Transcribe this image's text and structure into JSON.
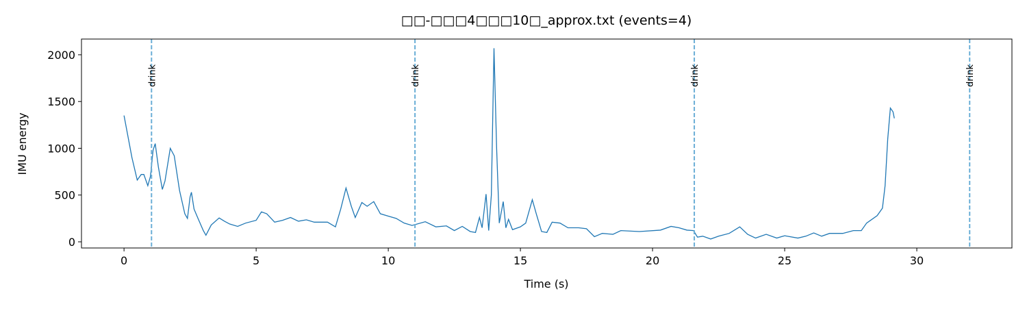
{
  "chart_data": {
    "type": "line",
    "title": "□□-□□□4□□□10□_approx.txt  (events=4)",
    "xlabel": "Time (s)",
    "ylabel": "IMU energy",
    "xlim": [
      -1.61,
      33.6
    ],
    "ylim": [
      -66,
      2168
    ],
    "xticks": [
      0,
      5,
      10,
      15,
      20,
      25,
      30
    ],
    "yticks": [
      0,
      500,
      1000,
      1500,
      2000
    ],
    "x": [
      0.0,
      0.3,
      0.5,
      0.65,
      0.75,
      0.9,
      1.0,
      1.1,
      1.18,
      1.3,
      1.45,
      1.55,
      1.75,
      1.9,
      2.1,
      2.3,
      2.4,
      2.5,
      2.55,
      2.65,
      2.8,
      3.0,
      3.1,
      3.3,
      3.6,
      3.8,
      4.0,
      4.3,
      4.6,
      5.0,
      5.2,
      5.4,
      5.7,
      6.0,
      6.3,
      6.6,
      6.9,
      7.2,
      7.7,
      8.0,
      8.2,
      8.4,
      8.6,
      8.75,
      9.0,
      9.2,
      9.45,
      9.7,
      10.0,
      10.3,
      10.6,
      10.9,
      11.4,
      11.8,
      12.2,
      12.5,
      12.8,
      13.1,
      13.3,
      13.45,
      13.55,
      13.7,
      13.8,
      13.9,
      14.0,
      14.1,
      14.2,
      14.35,
      14.45,
      14.55,
      14.7,
      15.0,
      15.2,
      15.45,
      15.6,
      15.8,
      16.0,
      16.2,
      16.5,
      16.8,
      17.2,
      17.5,
      17.8,
      18.1,
      18.5,
      18.8,
      19.5,
      20.3,
      20.7,
      21.0,
      21.3,
      21.55,
      21.7,
      21.9,
      22.2,
      22.5,
      22.9,
      23.3,
      23.6,
      23.9,
      24.3,
      24.7,
      25.0,
      25.5,
      25.8,
      26.1,
      26.4,
      26.7,
      27.2,
      27.6,
      27.9,
      28.1,
      28.5,
      28.7,
      28.8,
      28.9,
      29.0,
      29.1,
      29.15
    ],
    "series": [
      {
        "color": "#1f77b4",
        "values": [
          1350,
          900,
          660,
          720,
          720,
          600,
          700,
          980,
          1050,
          800,
          560,
          650,
          1000,
          920,
          550,
          300,
          250,
          480,
          530,
          350,
          250,
          120,
          70,
          180,
          255,
          220,
          190,
          165,
          200,
          230,
          320,
          300,
          210,
          230,
          260,
          220,
          235,
          210,
          210,
          160,
          350,
          575,
          380,
          260,
          420,
          380,
          430,
          300,
          275,
          250,
          200,
          175,
          215,
          160,
          170,
          120,
          165,
          110,
          100,
          260,
          150,
          510,
          120,
          500,
          2070,
          1000,
          200,
          430,
          150,
          240,
          130,
          160,
          200,
          450,
          300,
          110,
          100,
          210,
          200,
          150,
          150,
          140,
          55,
          90,
          80,
          120,
          110,
          125,
          165,
          150,
          125,
          120,
          50,
          60,
          30,
          60,
          90,
          160,
          80,
          40,
          80,
          40,
          65,
          40,
          60,
          95,
          60,
          90,
          90,
          120,
          120,
          200,
          280,
          360,
          600,
          1100,
          1430,
          1390,
          1320
        ]
      }
    ],
    "events": {
      "color": "#6aaed6",
      "x": [
        1.04,
        11.01,
        21.58,
        32.0
      ],
      "labels": [
        "drink",
        "drink",
        "drink",
        "drink"
      ]
    }
  }
}
